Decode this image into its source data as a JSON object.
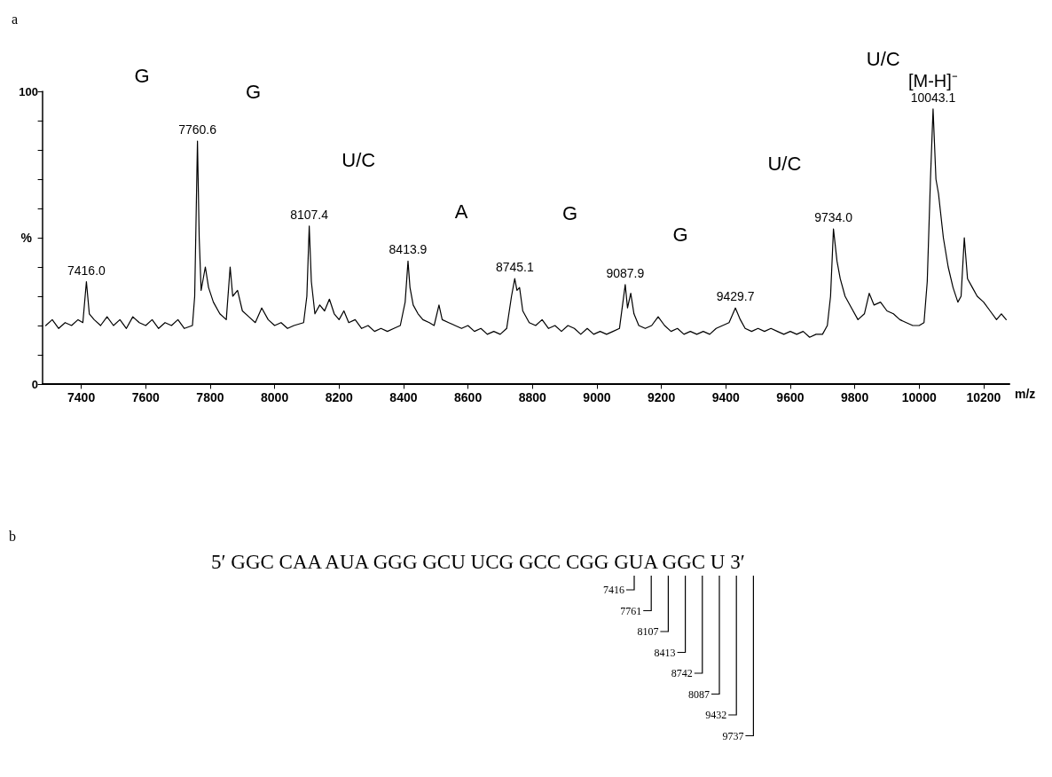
{
  "chart_data": [
    {
      "type": "line",
      "title": "a",
      "xlabel": "m/z",
      "ylabel": "%",
      "color": "#000000",
      "grid": false,
      "marker": "none",
      "line_style": "solid",
      "xlim": [
        7280,
        10280
      ],
      "xticks": [
        7400,
        7600,
        7800,
        8000,
        8200,
        8400,
        8600,
        8800,
        9000,
        9200,
        9400,
        9600,
        9800,
        10000,
        10200
      ],
      "ylim": [
        0,
        100
      ],
      "yticks": [
        0,
        {
          "value": 10,
          "label": null
        },
        {
          "value": 20,
          "label": null
        },
        {
          "value": 30,
          "label": null
        },
        {
          "value": 40,
          "label": null
        },
        {
          "value": 50,
          "label": null
        },
        {
          "value": 60,
          "label": null
        },
        {
          "value": 70,
          "label": null
        },
        {
          "value": 80,
          "label": null
        },
        {
          "value": 90,
          "label": null
        },
        100
      ],
      "x": [
        7290,
        7310,
        7330,
        7350,
        7370,
        7390,
        7405,
        7416,
        7425,
        7440,
        7460,
        7480,
        7500,
        7520,
        7540,
        7560,
        7580,
        7600,
        7620,
        7640,
        7660,
        7680,
        7700,
        7720,
        7745,
        7752,
        7760.6,
        7766,
        7772,
        7785,
        7795,
        7810,
        7830,
        7850,
        7862,
        7870,
        7885,
        7900,
        7920,
        7940,
        7960,
        7980,
        8000,
        8020,
        8040,
        8060,
        8090,
        8100,
        8107.4,
        8114,
        8125,
        8140,
        8155,
        8170,
        8185,
        8200,
        8215,
        8230,
        8250,
        8270,
        8290,
        8310,
        8330,
        8350,
        8370,
        8390,
        8405,
        8413.9,
        8420,
        8430,
        8445,
        8460,
        8480,
        8495,
        8510,
        8520,
        8540,
        8560,
        8580,
        8600,
        8620,
        8640,
        8660,
        8680,
        8700,
        8720,
        8735,
        8745.1,
        8752,
        8760,
        8770,
        8790,
        8810,
        8830,
        8850,
        8870,
        8890,
        8910,
        8930,
        8950,
        8970,
        8990,
        9010,
        9030,
        9050,
        9070,
        9087.9,
        9095,
        9105,
        9115,
        9130,
        9150,
        9170,
        9190,
        9210,
        9230,
        9250,
        9270,
        9290,
        9310,
        9330,
        9350,
        9370,
        9390,
        9410,
        9429.7,
        9445,
        9460,
        9480,
        9500,
        9520,
        9540,
        9560,
        9580,
        9600,
        9620,
        9640,
        9660,
        9680,
        9700,
        9715,
        9725,
        9734,
        9745,
        9755,
        9770,
        9790,
        9810,
        9830,
        9845,
        9860,
        9880,
        9900,
        9920,
        9940,
        9960,
        9980,
        10000,
        10015,
        10025,
        10035,
        10043.1,
        10052,
        10060,
        10075,
        10090,
        10105,
        10120,
        10130,
        10140,
        10150,
        10165,
        10180,
        10200,
        10220,
        10240,
        10255,
        10270
      ],
      "values": [
        20,
        22,
        19,
        21,
        20,
        22,
        21,
        35,
        24,
        22,
        20,
        23,
        20,
        22,
        19,
        23,
        21,
        20,
        22,
        19,
        21,
        20,
        22,
        19,
        20,
        30,
        83,
        50,
        32,
        40,
        33,
        28,
        24,
        22,
        40,
        30,
        32,
        25,
        23,
        21,
        26,
        22,
        20,
        21,
        19,
        20,
        21,
        30,
        54,
        35,
        24,
        27,
        25,
        29,
        24,
        22,
        25,
        21,
        22,
        19,
        20,
        18,
        19,
        18,
        19,
        20,
        28,
        42,
        33,
        27,
        24,
        22,
        21,
        20,
        27,
        22,
        21,
        20,
        19,
        20,
        18,
        19,
        17,
        18,
        17,
        19,
        30,
        36,
        32,
        33,
        25,
        21,
        20,
        22,
        19,
        20,
        18,
        20,
        19,
        17,
        19,
        17,
        18,
        17,
        18,
        19,
        34,
        26,
        31,
        24,
        20,
        19,
        20,
        23,
        20,
        18,
        19,
        17,
        18,
        17,
        18,
        17,
        19,
        20,
        21,
        26,
        22,
        19,
        18,
        19,
        18,
        19,
        18,
        17,
        18,
        17,
        18,
        16,
        17,
        17,
        20,
        30,
        53,
        42,
        36,
        30,
        26,
        22,
        24,
        31,
        27,
        28,
        25,
        24,
        22,
        21,
        20,
        20,
        21,
        35,
        70,
        94,
        70,
        65,
        50,
        40,
        33,
        28,
        30,
        50,
        36,
        33,
        30,
        28,
        25,
        22,
        24,
        22
      ],
      "annotations": [
        {
          "text": "7416.0",
          "x": 7416,
          "y": 35
        },
        {
          "text": "7760.6",
          "x": 7760.6,
          "y": 83
        },
        {
          "text": "8107.4",
          "x": 8107.4,
          "y": 54
        },
        {
          "text": "8413.9",
          "x": 8413.9,
          "y": 42
        },
        {
          "text": "8745.1",
          "x": 8745.1,
          "y": 36
        },
        {
          "text": "9087.9",
          "x": 9087.9,
          "y": 34
        },
        {
          "text": "9429.7",
          "x": 9429.7,
          "y": 26
        },
        {
          "text": "9734.0",
          "x": 9734,
          "y": 53
        },
        {
          "text": "10043.1",
          "x": 10043.1,
          "y": 94
        },
        "[M-H]⁻",
        "G",
        "G",
        "U/C",
        "A",
        "G",
        "G",
        "U/C",
        "U/C"
      ]
    },
    {
      "type": "other",
      "title": "b",
      "annotations": [
        "5′ GGC CAA AUA GGG GCU UCG GCC CGG GUA GGC U 3′",
        "7416",
        "7761",
        "8107",
        "8413",
        "8742",
        "8087",
        "9432",
        "9737"
      ]
    }
  ]
}
